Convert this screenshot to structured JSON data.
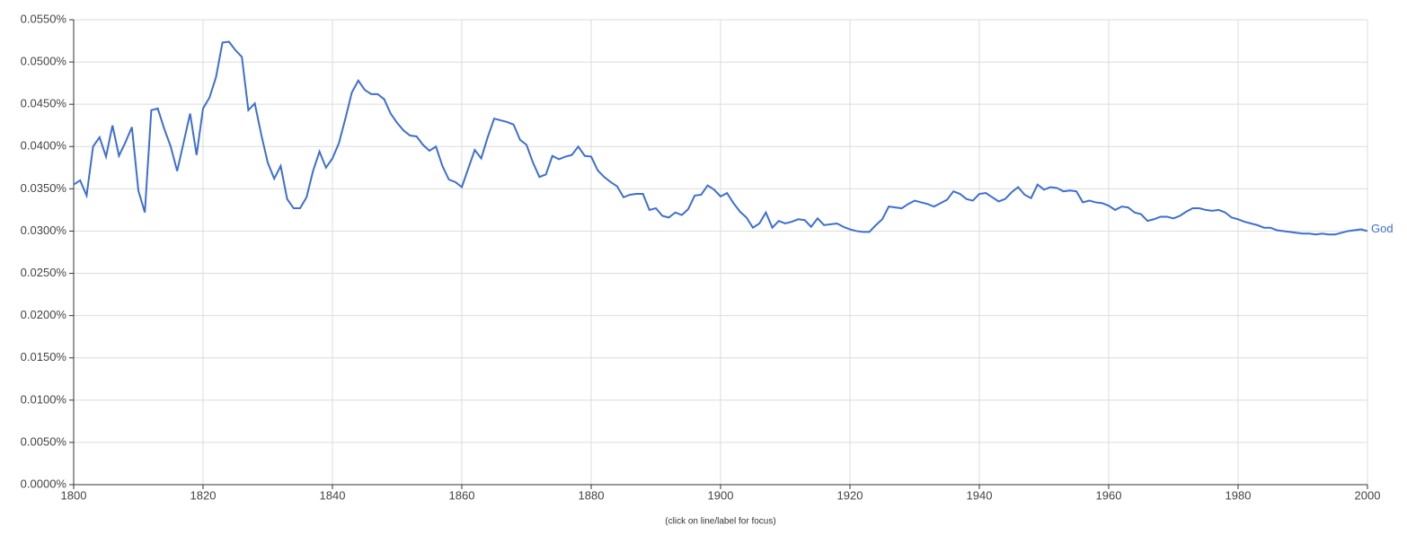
{
  "chart_data": {
    "type": "line",
    "note": "(click on line/label for focus)",
    "x": [
      1800,
      1801,
      1802,
      1803,
      1804,
      1805,
      1806,
      1807,
      1808,
      1809,
      1810,
      1811,
      1812,
      1813,
      1814,
      1815,
      1816,
      1817,
      1818,
      1819,
      1820,
      1821,
      1822,
      1823,
      1824,
      1825,
      1826,
      1827,
      1828,
      1829,
      1830,
      1831,
      1832,
      1833,
      1834,
      1835,
      1836,
      1837,
      1838,
      1839,
      1840,
      1841,
      1842,
      1843,
      1844,
      1845,
      1846,
      1847,
      1848,
      1849,
      1850,
      1851,
      1852,
      1853,
      1854,
      1855,
      1856,
      1857,
      1858,
      1859,
      1860,
      1861,
      1862,
      1863,
      1864,
      1865,
      1866,
      1867,
      1868,
      1869,
      1870,
      1871,
      1872,
      1873,
      1874,
      1875,
      1876,
      1877,
      1878,
      1879,
      1880,
      1881,
      1882,
      1883,
      1884,
      1885,
      1886,
      1887,
      1888,
      1889,
      1890,
      1891,
      1892,
      1893,
      1894,
      1895,
      1896,
      1897,
      1898,
      1899,
      1900,
      1901,
      1902,
      1903,
      1904,
      1905,
      1906,
      1907,
      1908,
      1909,
      1910,
      1911,
      1912,
      1913,
      1914,
      1915,
      1916,
      1917,
      1918,
      1919,
      1920,
      1921,
      1922,
      1923,
      1924,
      1925,
      1926,
      1927,
      1928,
      1929,
      1930,
      1931,
      1932,
      1933,
      1934,
      1935,
      1936,
      1937,
      1938,
      1939,
      1940,
      1941,
      1942,
      1943,
      1944,
      1945,
      1946,
      1947,
      1948,
      1949,
      1950,
      1951,
      1952,
      1953,
      1954,
      1955,
      1956,
      1957,
      1958,
      1959,
      1960,
      1961,
      1962,
      1963,
      1964,
      1965,
      1966,
      1967,
      1968,
      1969,
      1970,
      1971,
      1972,
      1973,
      1974,
      1975,
      1976,
      1977,
      1978,
      1979,
      1980,
      1981,
      1982,
      1983,
      1984,
      1985,
      1986,
      1987,
      1988,
      1989,
      1990,
      1991,
      1992,
      1993,
      1994,
      1995,
      1996,
      1997,
      1998,
      1999,
      2000
    ],
    "series": [
      {
        "name": "God",
        "color": "#3d6fd1",
        "values": [
          0.0355,
          0.036,
          0.0342,
          0.04,
          0.0411,
          0.0388,
          0.0425,
          0.0389,
          0.0405,
          0.0423,
          0.0348,
          0.0322,
          0.0443,
          0.0445,
          0.0421,
          0.04,
          0.0371,
          0.0405,
          0.0439,
          0.039,
          0.0445,
          0.0458,
          0.0482,
          0.0523,
          0.0524,
          0.0514,
          0.0506,
          0.0443,
          0.0451,
          0.0414,
          0.0381,
          0.0362,
          0.0377,
          0.0338,
          0.0327,
          0.0327,
          0.034,
          0.0371,
          0.0394,
          0.0375,
          0.0386,
          0.0404,
          0.0433,
          0.0464,
          0.0478,
          0.0467,
          0.0462,
          0.0462,
          0.0456,
          0.0439,
          0.0428,
          0.0419,
          0.0413,
          0.0412,
          0.0402,
          0.0395,
          0.04,
          0.0377,
          0.0361,
          0.0358,
          0.0352,
          0.0374,
          0.0396,
          0.0386,
          0.0411,
          0.0433,
          0.0431,
          0.0429,
          0.0426,
          0.0408,
          0.0402,
          0.0381,
          0.0364,
          0.0367,
          0.0389,
          0.0385,
          0.0388,
          0.039,
          0.04,
          0.0389,
          0.0388,
          0.0372,
          0.0364,
          0.0358,
          0.0353,
          0.034,
          0.0343,
          0.0344,
          0.0344,
          0.0325,
          0.0327,
          0.0318,
          0.0316,
          0.0322,
          0.0319,
          0.0326,
          0.0342,
          0.0343,
          0.0354,
          0.0349,
          0.0341,
          0.0345,
          0.0333,
          0.0323,
          0.0316,
          0.0304,
          0.0309,
          0.0322,
          0.0304,
          0.0312,
          0.0309,
          0.0311,
          0.0314,
          0.0313,
          0.0305,
          0.0315,
          0.0307,
          0.0308,
          0.0309,
          0.0305,
          0.0302,
          0.03,
          0.0299,
          0.0299,
          0.0307,
          0.0314,
          0.0329,
          0.0328,
          0.0327,
          0.0332,
          0.0336,
          0.0334,
          0.0332,
          0.0329,
          0.0333,
          0.0337,
          0.0347,
          0.0344,
          0.0338,
          0.0336,
          0.0344,
          0.0345,
          0.034,
          0.0335,
          0.0338,
          0.0346,
          0.0352,
          0.0343,
          0.0339,
          0.0355,
          0.0349,
          0.0352,
          0.0351,
          0.0347,
          0.0348,
          0.0347,
          0.0334,
          0.0336,
          0.0334,
          0.0333,
          0.033,
          0.0325,
          0.0329,
          0.0328,
          0.0322,
          0.032,
          0.0312,
          0.0314,
          0.0317,
          0.0317,
          0.0315,
          0.0318,
          0.0323,
          0.0327,
          0.0327,
          0.0325,
          0.0324,
          0.0325,
          0.0322,
          0.0316,
          0.0314,
          0.0311,
          0.0309,
          0.0307,
          0.0304,
          0.0304,
          0.0301,
          0.03,
          0.0299,
          0.0298,
          0.0297,
          0.0297,
          0.0296,
          0.0297,
          0.0296,
          0.0296,
          0.0298,
          0.03,
          0.0301,
          0.0302,
          0.03
        ]
      }
    ],
    "xlim": [
      1800,
      2000
    ],
    "xticks": [
      1800,
      1820,
      1840,
      1860,
      1880,
      1900,
      1920,
      1940,
      1960,
      1980,
      2000
    ],
    "ylim": [
      0,
      0.055
    ],
    "yticks": [
      {
        "value": 0,
        "label": "0.0000%"
      },
      {
        "value": 0.005,
        "label": "0.0050%"
      },
      {
        "value": 0.01,
        "label": "0.0100%"
      },
      {
        "value": 0.015,
        "label": "0.0150%"
      },
      {
        "value": 0.02,
        "label": "0.0200%"
      },
      {
        "value": 0.025,
        "label": "0.0250%"
      },
      {
        "value": 0.03,
        "label": "0.0300%"
      },
      {
        "value": 0.035,
        "label": "0.0350%"
      },
      {
        "value": 0.04,
        "label": "0.0400%"
      },
      {
        "value": 0.045,
        "label": "0.0450%"
      },
      {
        "value": 0.05,
        "label": "0.0500%"
      },
      {
        "value": 0.055,
        "label": "0.0550%"
      }
    ],
    "grid": true
  }
}
